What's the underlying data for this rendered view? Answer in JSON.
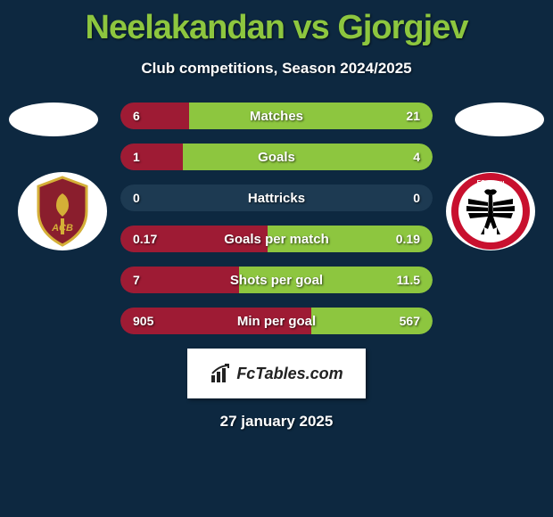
{
  "title": "Neelakandan vs Gjorgjev",
  "subtitle": "Club competitions, Season 2024/2025",
  "date": "27 january 2025",
  "footer": {
    "text": "FcTables.com"
  },
  "colors": {
    "background": "#0d2840",
    "title": "#8dc63f",
    "left_bar": "#9e1b34",
    "right_bar": "#8dc63f",
    "bar_bg": "#1d3a52",
    "text": "#ffffff"
  },
  "crests": {
    "left": {
      "circle_bg": "#ffffff",
      "shield_fill": "#8a1e2d",
      "shield_border": "#d4af37",
      "text": "ACB"
    },
    "right": {
      "circle_bg": "#ffffff",
      "ring_color": "#c8102e",
      "inner_bg": "#ffffff",
      "eagle_color": "#000000",
      "text": "FC Aarau"
    }
  },
  "stats": [
    {
      "label": "Matches",
      "left_val": "6",
      "right_val": "21",
      "left_pct": 22,
      "right_pct": 78
    },
    {
      "label": "Goals",
      "left_val": "1",
      "right_val": "4",
      "left_pct": 20,
      "right_pct": 80
    },
    {
      "label": "Hattricks",
      "left_val": "0",
      "right_val": "0",
      "left_pct": 0,
      "right_pct": 0
    },
    {
      "label": "Goals per match",
      "left_val": "0.17",
      "right_val": "0.19",
      "left_pct": 47,
      "right_pct": 53
    },
    {
      "label": "Shots per goal",
      "left_val": "7",
      "right_val": "11.5",
      "left_pct": 38,
      "right_pct": 62
    },
    {
      "label": "Min per goal",
      "left_val": "905",
      "right_val": "567",
      "left_pct": 61,
      "right_pct": 39
    }
  ]
}
